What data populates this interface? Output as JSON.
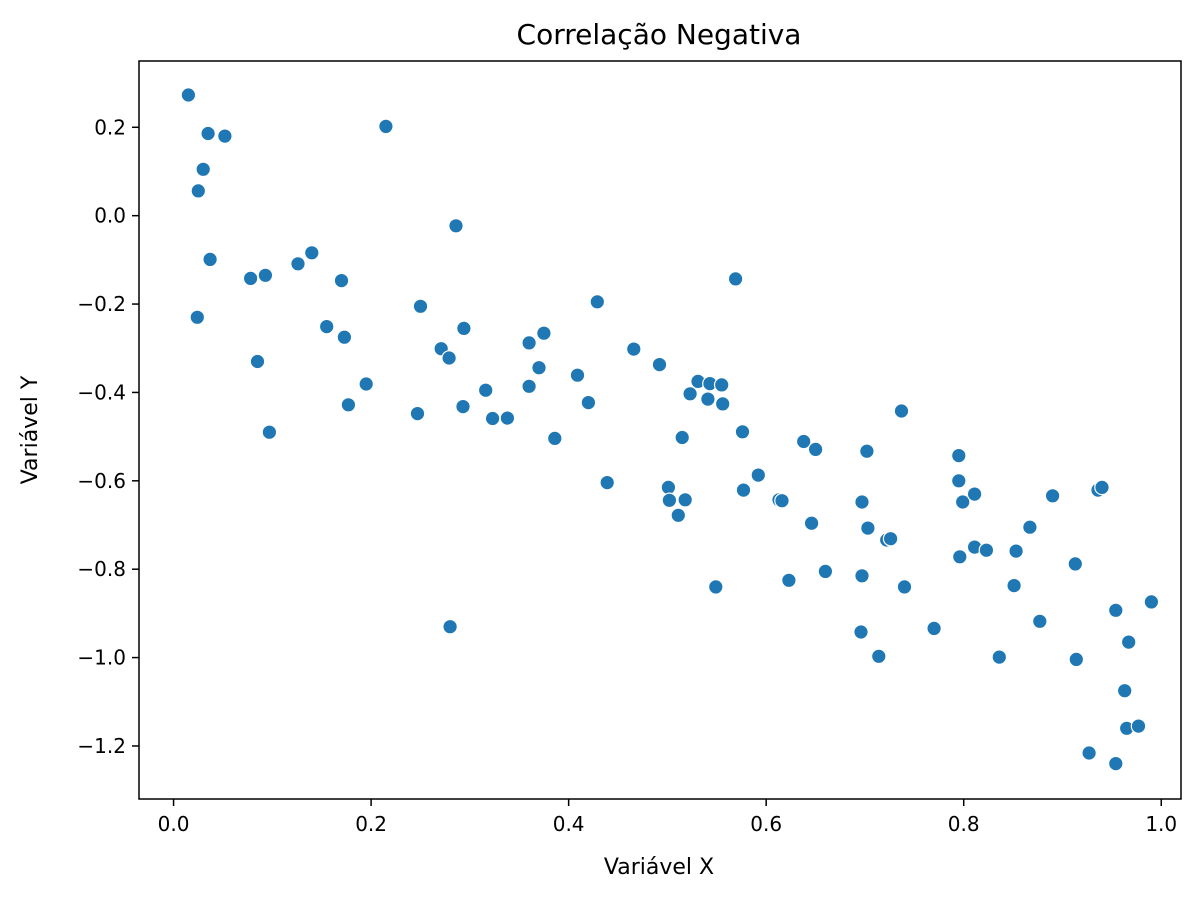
{
  "chart_data": {
    "type": "scatter",
    "title": "Correlação Negativa",
    "xlabel": "Variável X",
    "ylabel": "Variável Y",
    "xlim": [
      -0.035,
      1.02
    ],
    "ylim": [
      -1.32,
      0.35
    ],
    "xticks": [
      0.0,
      0.2,
      0.4,
      0.6,
      0.8,
      1.0
    ],
    "xtick_labels": [
      "0.0",
      "0.2",
      "0.4",
      "0.6",
      "0.8",
      "1.0"
    ],
    "yticks": [
      0.2,
      0.0,
      -0.2,
      -0.4,
      -0.6,
      -0.8,
      -1.0,
      -1.2
    ],
    "ytick_labels": [
      "0.2",
      "0.0",
      "−0.2",
      "−0.4",
      "−0.6",
      "−0.8",
      "−1.0",
      "−1.2"
    ],
    "grid": false,
    "color": "#1f77b4",
    "points": [
      [
        0.015,
        0.273
      ],
      [
        0.035,
        0.186
      ],
      [
        0.052,
        0.18
      ],
      [
        0.03,
        0.105
      ],
      [
        0.025,
        0.056
      ],
      [
        0.037,
        -0.099
      ],
      [
        0.024,
        -0.23
      ],
      [
        0.215,
        0.202
      ],
      [
        0.078,
        -0.142
      ],
      [
        0.093,
        -0.135
      ],
      [
        0.126,
        -0.109
      ],
      [
        0.14,
        -0.084
      ],
      [
        0.17,
        -0.147
      ],
      [
        0.155,
        -0.251
      ],
      [
        0.173,
        -0.275
      ],
      [
        0.085,
        -0.33
      ],
      [
        0.097,
        -0.49
      ],
      [
        0.195,
        -0.381
      ],
      [
        0.177,
        -0.428
      ],
      [
        0.286,
        -0.023
      ],
      [
        0.25,
        -0.205
      ],
      [
        0.294,
        -0.255
      ],
      [
        0.271,
        -0.301
      ],
      [
        0.279,
        -0.322
      ],
      [
        0.247,
        -0.448
      ],
      [
        0.293,
        -0.432
      ],
      [
        0.316,
        -0.395
      ],
      [
        0.323,
        -0.459
      ],
      [
        0.338,
        -0.458
      ],
      [
        0.36,
        -0.288
      ],
      [
        0.375,
        -0.266
      ],
      [
        0.37,
        -0.344
      ],
      [
        0.36,
        -0.386
      ],
      [
        0.386,
        -0.504
      ],
      [
        0.429,
        -0.195
      ],
      [
        0.409,
        -0.361
      ],
      [
        0.42,
        -0.423
      ],
      [
        0.439,
        -0.604
      ],
      [
        0.28,
        -0.93
      ],
      [
        0.466,
        -0.302
      ],
      [
        0.492,
        -0.337
      ],
      [
        0.531,
        -0.375
      ],
      [
        0.523,
        -0.403
      ],
      [
        0.543,
        -0.38
      ],
      [
        0.555,
        -0.383
      ],
      [
        0.541,
        -0.415
      ],
      [
        0.556,
        -0.426
      ],
      [
        0.569,
        -0.143
      ],
      [
        0.515,
        -0.502
      ],
      [
        0.501,
        -0.615
      ],
      [
        0.502,
        -0.644
      ],
      [
        0.518,
        -0.643
      ],
      [
        0.511,
        -0.678
      ],
      [
        0.549,
        -0.84
      ],
      [
        0.576,
        -0.489
      ],
      [
        0.577,
        -0.621
      ],
      [
        0.592,
        -0.587
      ],
      [
        0.613,
        -0.643
      ],
      [
        0.616,
        -0.645
      ],
      [
        0.623,
        -0.825
      ],
      [
        0.638,
        -0.511
      ],
      [
        0.65,
        -0.529
      ],
      [
        0.646,
        -0.696
      ],
      [
        0.66,
        -0.805
      ],
      [
        0.697,
        -0.648
      ],
      [
        0.702,
        -0.533
      ],
      [
        0.703,
        -0.707
      ],
      [
        0.722,
        -0.734
      ],
      [
        0.726,
        -0.731
      ],
      [
        0.697,
        -0.815
      ],
      [
        0.74,
        -0.84
      ],
      [
        0.696,
        -0.942
      ],
      [
        0.714,
        -0.997
      ],
      [
        0.737,
        -0.442
      ],
      [
        0.77,
        -0.934
      ],
      [
        0.795,
        -0.543
      ],
      [
        0.795,
        -0.6
      ],
      [
        0.799,
        -0.648
      ],
      [
        0.811,
        -0.63
      ],
      [
        0.796,
        -0.772
      ],
      [
        0.811,
        -0.75
      ],
      [
        0.823,
        -0.757
      ],
      [
        0.836,
        -0.999
      ],
      [
        0.853,
        -0.759
      ],
      [
        0.867,
        -0.705
      ],
      [
        0.851,
        -0.837
      ],
      [
        0.877,
        -0.918
      ],
      [
        0.89,
        -0.634
      ],
      [
        0.936,
        -0.621
      ],
      [
        0.94,
        -0.615
      ],
      [
        0.913,
        -0.788
      ],
      [
        0.914,
        -1.004
      ],
      [
        0.954,
        -0.893
      ],
      [
        0.967,
        -0.965
      ],
      [
        0.99,
        -0.874
      ],
      [
        0.963,
        -1.075
      ],
      [
        0.965,
        -1.16
      ],
      [
        0.977,
        -1.155
      ],
      [
        0.927,
        -1.216
      ],
      [
        0.954,
        -1.24
      ]
    ]
  }
}
